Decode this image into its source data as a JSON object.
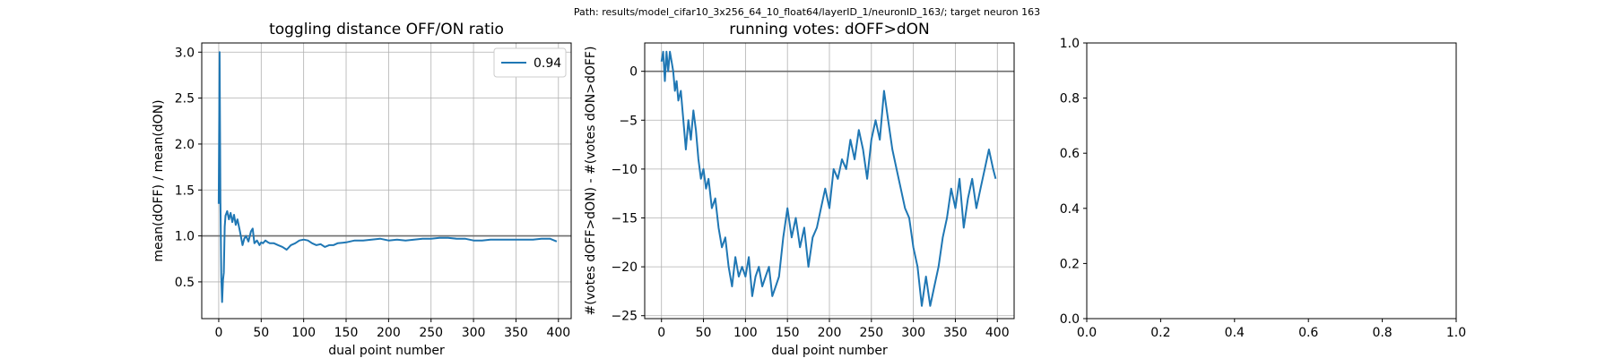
{
  "suptitle": "Path: results/model_cifar10_3x256_64_10_float64/layerID_1/neuronID_163/; target neuron 163",
  "chart_data": [
    {
      "type": "line",
      "title": "toggling distance OFF/ON ratio",
      "xlabel": "dual point number",
      "ylabel": "mean(dOFF) / mean(dON)",
      "xlim": [
        -20,
        415
      ],
      "ylim": [
        0.1,
        3.1
      ],
      "xticks": [
        0,
        50,
        100,
        150,
        200,
        250,
        300,
        350,
        400
      ],
      "yticks": [
        0.5,
        1.0,
        1.5,
        2.0,
        2.5,
        3.0
      ],
      "ytick_labels": [
        "0.5",
        "1.0",
        "1.5",
        "2.0",
        "2.5",
        "3.0"
      ],
      "grid": true,
      "legend": "upper right",
      "hline": 1.0,
      "line_color": "#1f77b4",
      "series": [
        {
          "name": "0.94",
          "x": [
            0,
            1,
            2,
            3,
            4,
            5,
            6,
            7,
            8,
            10,
            12,
            14,
            16,
            18,
            20,
            22,
            25,
            28,
            30,
            32,
            35,
            38,
            40,
            42,
            45,
            48,
            50,
            52,
            55,
            58,
            60,
            65,
            70,
            75,
            80,
            85,
            90,
            95,
            100,
            105,
            110,
            115,
            120,
            125,
            130,
            135,
            140,
            150,
            160,
            170,
            180,
            190,
            200,
            210,
            220,
            230,
            240,
            250,
            260,
            270,
            280,
            290,
            300,
            310,
            320,
            330,
            340,
            350,
            360,
            370,
            380,
            390,
            398
          ],
          "y": [
            1.35,
            3.0,
            1.4,
            0.55,
            0.28,
            0.52,
            0.6,
            1.1,
            1.22,
            1.27,
            1.18,
            1.25,
            1.15,
            1.23,
            1.12,
            1.18,
            1.05,
            0.9,
            0.97,
            1.0,
            0.94,
            1.05,
            1.08,
            0.92,
            0.95,
            0.9,
            0.93,
            0.92,
            0.95,
            0.93,
            0.92,
            0.92,
            0.9,
            0.88,
            0.85,
            0.9,
            0.92,
            0.95,
            0.96,
            0.95,
            0.92,
            0.9,
            0.91,
            0.88,
            0.9,
            0.9,
            0.92,
            0.93,
            0.95,
            0.95,
            0.96,
            0.97,
            0.95,
            0.96,
            0.95,
            0.96,
            0.97,
            0.97,
            0.98,
            0.98,
            0.97,
            0.97,
            0.95,
            0.95,
            0.96,
            0.96,
            0.96,
            0.96,
            0.96,
            0.96,
            0.97,
            0.97,
            0.94
          ]
        }
      ]
    },
    {
      "type": "line",
      "title": "running votes: dOFF>dON",
      "xlabel": "dual point number",
      "ylabel": "#(votes dOFF>dON) - #(votes dON>dOFF)",
      "xlim": [
        -20,
        420
      ],
      "ylim": [
        -25.3,
        2.9
      ],
      "xticks": [
        0,
        50,
        100,
        150,
        200,
        250,
        300,
        350,
        400
      ],
      "yticks": [
        0,
        -5,
        -10,
        -15,
        -20,
        -25
      ],
      "ytick_labels": [
        "0",
        "−5",
        "−10",
        "−15",
        "−20",
        "−25"
      ],
      "grid": true,
      "hline": 0,
      "line_color": "#1f77b4",
      "series": [
        {
          "x": [
            0,
            2,
            4,
            6,
            8,
            10,
            12,
            14,
            16,
            18,
            20,
            23,
            26,
            29,
            32,
            35,
            38,
            41,
            44,
            47,
            50,
            53,
            56,
            60,
            64,
            68,
            72,
            76,
            80,
            84,
            88,
            92,
            96,
            100,
            104,
            108,
            112,
            116,
            120,
            124,
            128,
            132,
            136,
            140,
            145,
            150,
            155,
            160,
            165,
            170,
            175,
            180,
            185,
            190,
            195,
            200,
            205,
            210,
            215,
            220,
            225,
            230,
            235,
            240,
            245,
            250,
            255,
            260,
            265,
            270,
            275,
            280,
            285,
            290,
            295,
            300,
            305,
            310,
            315,
            320,
            325,
            330,
            335,
            340,
            345,
            350,
            355,
            360,
            365,
            370,
            375,
            380,
            385,
            390,
            395,
            398
          ],
          "y": [
            1,
            2,
            -1,
            2,
            0,
            2,
            1,
            0,
            -2,
            -1,
            -3,
            -2,
            -5,
            -8,
            -5,
            -7,
            -4,
            -6,
            -9,
            -11,
            -10,
            -12,
            -11,
            -14,
            -13,
            -16,
            -18,
            -17,
            -20,
            -22,
            -19,
            -21,
            -20,
            -21,
            -19,
            -23,
            -21,
            -20,
            -22,
            -21,
            -20,
            -23,
            -22,
            -21,
            -17,
            -14,
            -17,
            -15,
            -18,
            -16,
            -20,
            -17,
            -16,
            -14,
            -12,
            -14,
            -10,
            -11,
            -9,
            -10,
            -7,
            -9,
            -6,
            -8,
            -11,
            -7,
            -5,
            -7,
            -2,
            -5,
            -8,
            -10,
            -12,
            -14,
            -15,
            -18,
            -20,
            -24,
            -21,
            -24,
            -22,
            -20,
            -17,
            -15,
            -12,
            -14,
            -11,
            -16,
            -13,
            -11,
            -14,
            -12,
            -10,
            -8,
            -10,
            -11
          ]
        }
      ]
    },
    {
      "type": "line",
      "title": "",
      "xlim": [
        0,
        1
      ],
      "ylim": [
        0,
        1
      ],
      "xticks": [
        0.0,
        0.2,
        0.4,
        0.6,
        0.8,
        1.0
      ],
      "yticks": [
        0.0,
        0.2,
        0.4,
        0.6,
        0.8,
        1.0
      ],
      "xtick_labels": [
        "0.0",
        "0.2",
        "0.4",
        "0.6",
        "0.8",
        "1.0"
      ],
      "ytick_labels": [
        "0.0",
        "0.2",
        "0.4",
        "0.6",
        "0.8",
        "1.0"
      ],
      "grid": false,
      "series": []
    }
  ]
}
